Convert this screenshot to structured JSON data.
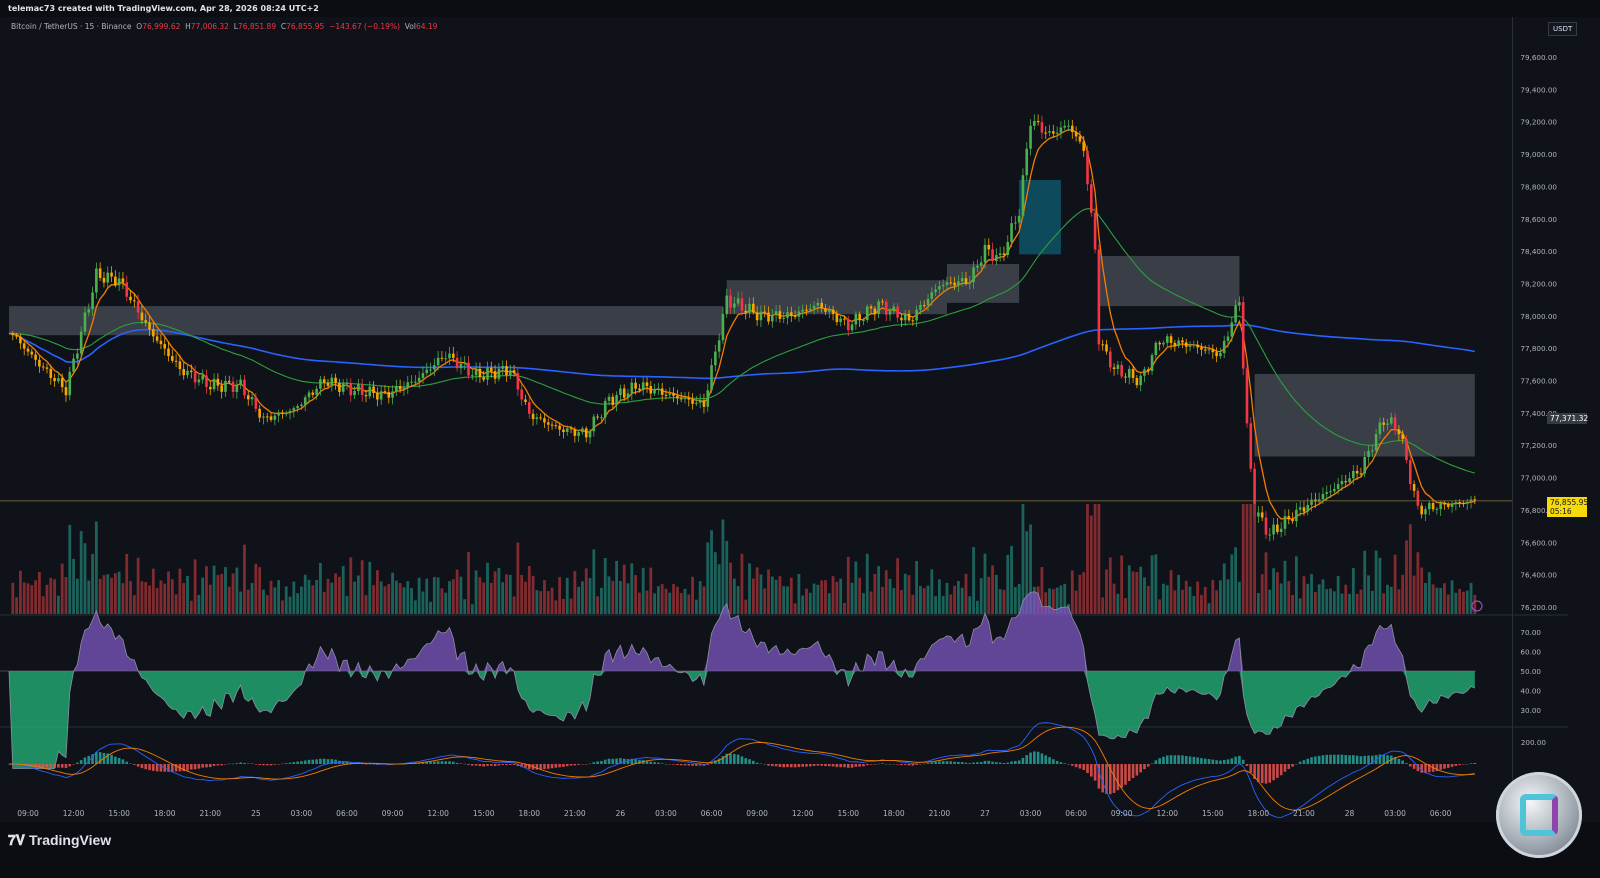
{
  "header": {
    "credit": "telemac73 created with TradingView.com, Apr 28, 2026 08:24 UTC+2"
  },
  "legend": {
    "symbol": "Bitcoin / TetherUS · 15 · Binance",
    "open_label": "O",
    "open": "76,999.62",
    "high_label": "H",
    "high": "77,006.32",
    "low_label": "L",
    "low": "76,851.89",
    "close_label": "C",
    "close": "76,855.95",
    "change": "−143.67 (−0.19%)",
    "vol_label": "Vol",
    "vol": "64.19"
  },
  "price_axis": {
    "currency": "USDT",
    "last_price": "76,855.95",
    "countdown": "05:16",
    "marker_price": "77,371.32"
  },
  "footer": {
    "brand": "TradingView"
  },
  "colors": {
    "up": "#4caf50",
    "down": "#f7a600",
    "strong_down": "#f23645",
    "ma_slow": "#2962ff",
    "ma_mid": "#2e9e3f",
    "ma_fast": "#f57c00",
    "cloud": "#4a4d57",
    "cloud_bull": "#0e4a5c",
    "rsi_above": "#7e57c2",
    "rsi_below": "#26c281",
    "last_price": "#f5d90a"
  },
  "icons": {
    "alert": "lightning-alert-icon",
    "logo": "tradingview-logo-icon",
    "coin": "coin-watermark-icon"
  },
  "chart_data": {
    "type": "candlestick",
    "interval": "15",
    "ylim": [
      76200,
      79600
    ],
    "y_ticks": [
      "79,600.00",
      "79,400.00",
      "79,200.00",
      "79,000.00",
      "78,800.00",
      "78,600.00",
      "78,400.00",
      "78,200.00",
      "78,000.00",
      "77,800.00",
      "77,600.00",
      "77,400.00",
      "77,200.00",
      "77,000.00",
      "76,800.00",
      "76,600.00",
      "76,400.00",
      "76,200.00"
    ],
    "x_ticks": [
      "09:00",
      "12:00",
      "15:00",
      "18:00",
      "21:00",
      "25",
      "03:00",
      "06:00",
      "09:00",
      "12:00",
      "15:00",
      "18:00",
      "21:00",
      "26",
      "03:00",
      "06:00",
      "09:00",
      "12:00",
      "15:00",
      "18:00",
      "21:00",
      "27",
      "03:00",
      "06:00",
      "09:00",
      "12:00",
      "15:00",
      "18:00",
      "21:00",
      "28",
      "03:00",
      "06:00"
    ],
    "price_path": [
      [
        "04-24 07:45",
        77910
      ],
      [
        "04-24 09:45",
        77700
      ],
      [
        "04-24 11:30",
        77540
      ],
      [
        "04-24 13:30",
        78250
      ],
      [
        "04-24 15:00",
        78220
      ],
      [
        "04-24 17:00",
        77910
      ],
      [
        "04-24 19:00",
        77670
      ],
      [
        "04-24 21:00",
        77570
      ],
      [
        "04-24 23:00",
        77570
      ],
      [
        "04-25 00:30",
        77360
      ],
      [
        "04-25 02:30",
        77420
      ],
      [
        "04-25 04:30",
        77600
      ],
      [
        "04-25 06:30",
        77540
      ],
      [
        "04-25 08:30",
        77510
      ],
      [
        "04-25 10:30",
        77600
      ],
      [
        "04-25 12:30",
        77760
      ],
      [
        "04-25 14:30",
        77630
      ],
      [
        "04-25 16:45",
        77670
      ],
      [
        "04-25 18:00",
        77390
      ],
      [
        "04-25 20:00",
        77300
      ],
      [
        "04-25 21:45",
        77270
      ],
      [
        "04-25 23:15",
        77480
      ],
      [
        "04-26 01:15",
        77570
      ],
      [
        "04-26 03:15",
        77510
      ],
      [
        "04-26 05:30",
        77450
      ],
      [
        "04-26 07:00",
        78100
      ],
      [
        "04-26 09:15",
        78000
      ],
      [
        "04-26 11:15",
        78000
      ],
      [
        "04-26 13:00",
        78070
      ],
      [
        "04-26 15:00",
        77940
      ],
      [
        "04-26 17:00",
        78070
      ],
      [
        "04-26 19:00",
        77970
      ],
      [
        "04-26 21:00",
        78190
      ],
      [
        "04-26 23:00",
        78220
      ],
      [
        "04-27 00:00",
        78410
      ],
      [
        "04-27 01:00",
        78350
      ],
      [
        "04-27 02:15",
        78650
      ],
      [
        "04-27 03:00",
        79210
      ],
      [
        "04-27 04:15",
        79120
      ],
      [
        "04-27 05:30",
        79180
      ],
      [
        "04-27 06:30",
        79030
      ],
      [
        "04-27 07:15",
        78410
      ],
      [
        "04-27 07:30",
        77850
      ],
      [
        "04-27 08:30",
        77670
      ],
      [
        "04-27 10:15",
        77600
      ],
      [
        "04-27 11:30",
        77850
      ],
      [
        "04-27 13:30",
        77820
      ],
      [
        "04-27 15:30",
        77760
      ],
      [
        "04-27 16:45",
        78100
      ],
      [
        "04-27 17:15",
        77300
      ],
      [
        "04-27 17:45",
        76800
      ],
      [
        "04-27 18:45",
        76650
      ],
      [
        "04-27 20:45",
        76800
      ],
      [
        "04-27 22:45",
        76920
      ],
      [
        "04-28 00:45",
        77050
      ],
      [
        "04-28 02:15",
        77360
      ],
      [
        "04-28 03:15",
        77300
      ],
      [
        "04-28 04:30",
        76800
      ],
      [
        "04-28 06:15",
        76830
      ],
      [
        "04-28 08:15",
        76856
      ]
    ],
    "cloud": [
      {
        "from": "04-24 07:45",
        "to": "04-26 06:45",
        "low": 77880,
        "high": 78060
      },
      {
        "from": "04-26 07:00",
        "to": "04-26 21:30",
        "low": 78010,
        "high": 78220
      },
      {
        "from": "04-26 21:30",
        "to": "04-27 02:15",
        "low": 78080,
        "high": 78320
      },
      {
        "from": "04-27 07:30",
        "to": "04-27 16:45",
        "low": 78060,
        "high": 78370
      },
      {
        "from": "04-27 17:45",
        "to": "04-28 08:15",
        "low": 77130,
        "high": 77640
      }
    ],
    "cloud_bull": [
      {
        "from": "04-27 02:15",
        "to": "04-27 05:00",
        "low": 78380,
        "high": 78840
      }
    ],
    "rsi": {
      "ylim": [
        25,
        75
      ],
      "ticks": [
        "70.00",
        "60.00",
        "50.00",
        "40.00",
        "30.00"
      ],
      "midline": 50
    },
    "macd": {
      "ticks": [
        "200.00"
      ]
    }
  }
}
